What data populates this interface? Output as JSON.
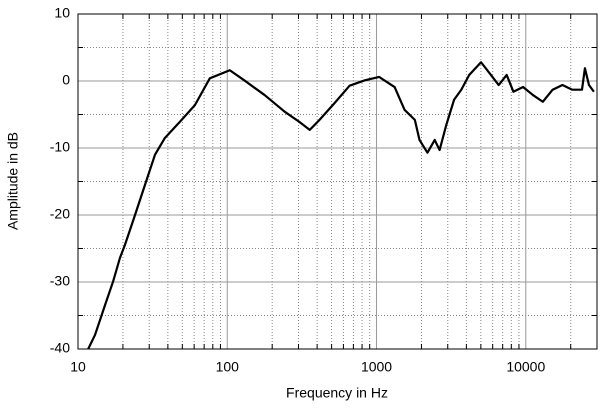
{
  "chart_data": {
    "type": "line",
    "xlabel": "Frequency in Hz",
    "ylabel": "Amplitude in dB",
    "xscale": "log",
    "grid": true,
    "xlim": [
      10,
      30000
    ],
    "ylim": [
      -40,
      10
    ],
    "xticks": [
      10,
      100,
      1000,
      10000
    ],
    "yticks": [
      10,
      0,
      -10,
      -20,
      -30,
      -40
    ],
    "x": [
      11.7,
      13,
      15.2,
      17.2,
      19.1,
      20.6,
      24.1,
      28.1,
      32.8,
      38.2,
      48.1,
      60.7,
      76.4,
      104,
      130,
      178,
      243,
      304,
      357,
      415,
      523,
      660,
      835,
      1042,
      1322,
      1541,
      1806,
      1941,
      2193,
      2454,
      2647,
      2930,
      3309,
      3697,
      4175,
      5015,
      5660,
      6584,
      7447,
      8258,
      9590,
      11170,
      13000,
      15125,
      17600,
      20480,
      23800,
      24900,
      26500,
      28600
    ],
    "series": [
      {
        "color": "#000000",
        "values": [
          -40,
          -37.9,
          -33.4,
          -29.9,
          -26.4,
          -24.5,
          -20,
          -15.5,
          -11,
          -8.5,
          -6.1,
          -3.6,
          0.4,
          1.6,
          0.1,
          -2.1,
          -4.6,
          -6.1,
          -7.3,
          -5.8,
          -3.3,
          -0.7,
          0.1,
          0.6,
          -0.9,
          -4.3,
          -5.8,
          -8.8,
          -10.7,
          -8.8,
          -10.3,
          -6.6,
          -2.8,
          -1.3,
          0.9,
          2.8,
          1.3,
          -0.6,
          0.9,
          -1.6,
          -0.9,
          -2.1,
          -3.1,
          -1.3,
          -0.6,
          -1.3,
          -1.3,
          1.9,
          -0.6,
          -1.6
        ]
      }
    ]
  }
}
